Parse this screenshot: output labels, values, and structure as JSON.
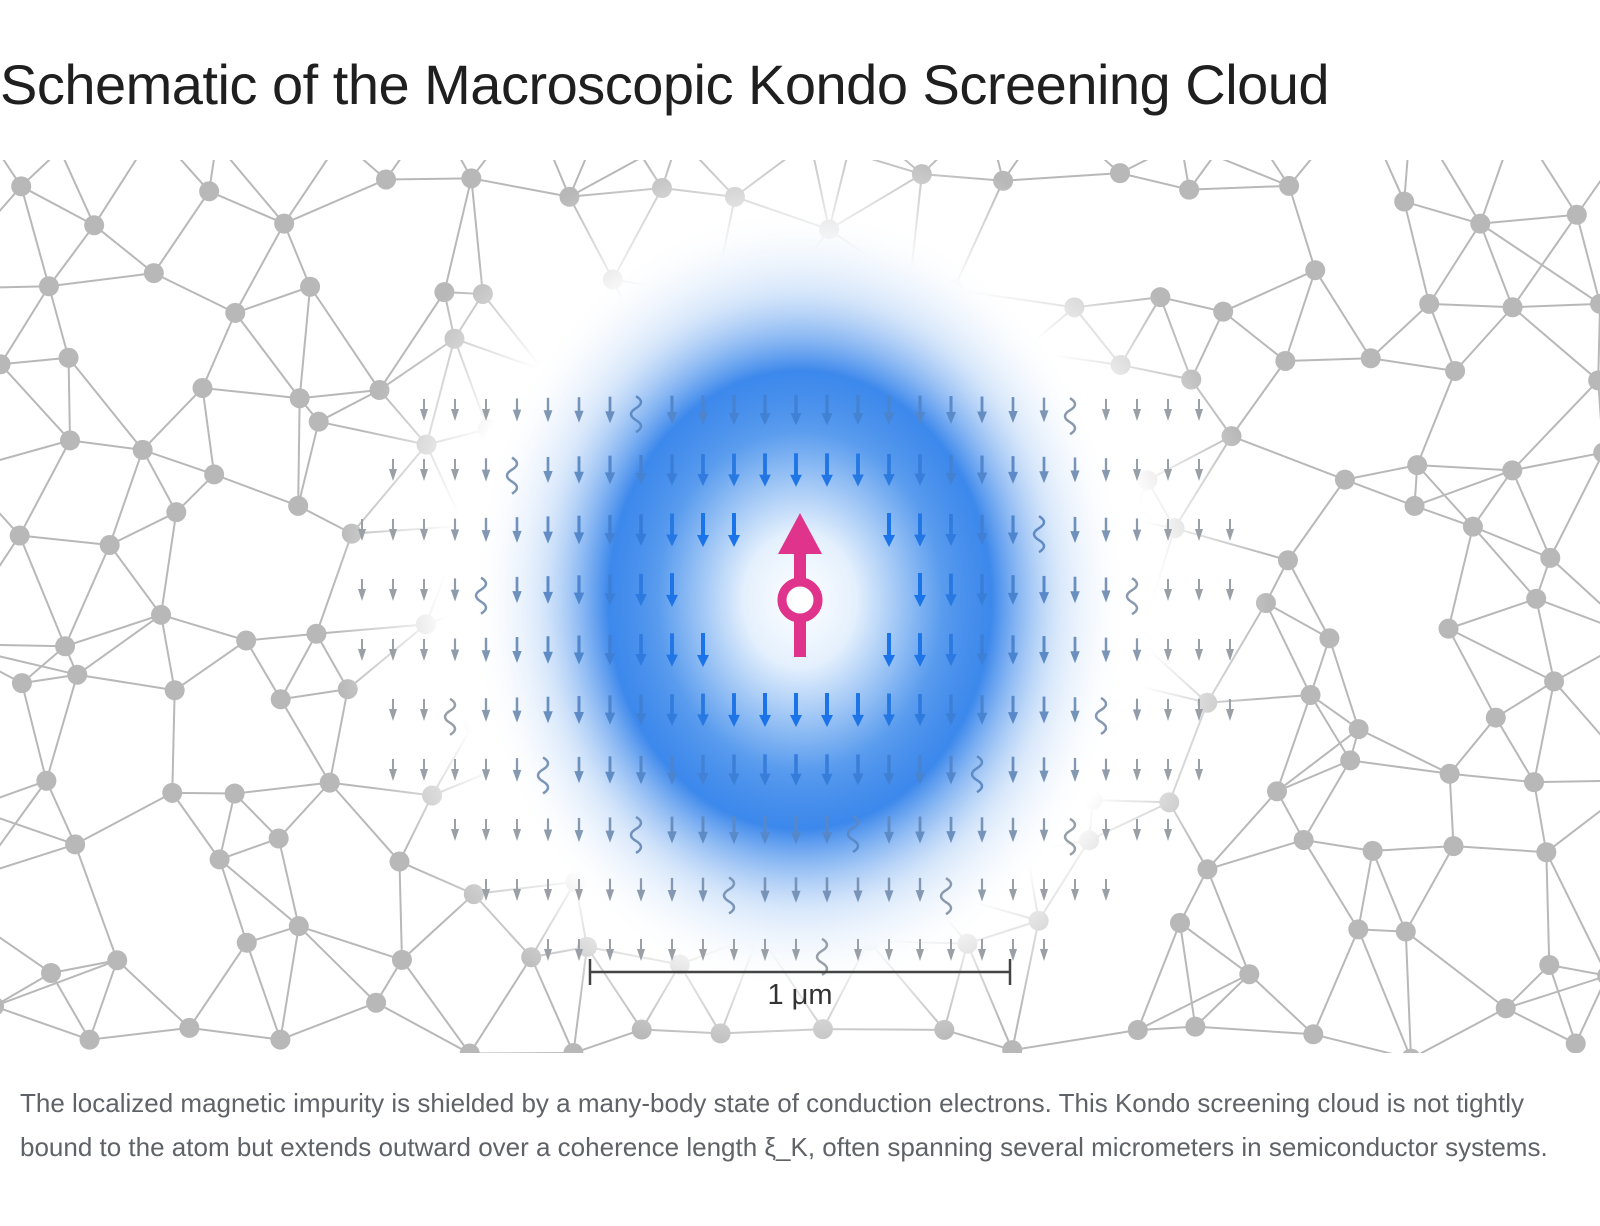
{
  "title": "Schematic of the Macroscopic Kondo Screening Cloud",
  "scale_bar": {
    "label": "1 μm"
  },
  "caption": "The localized magnetic impurity is shielded by a many-body state of conduction electrons. This Kondo screening cloud is not tightly bound to the atom but extends outward over a coherence length ξ_K, often spanning several micrometers in semiconductor systems.",
  "colors": {
    "impurity": "#e0338c",
    "cloud": "#1a73e8",
    "lattice": "#b8b8b8",
    "arrow_inner": "#1a73e8",
    "arrow_outer": "#9aa0a6"
  },
  "elements": {
    "impurity": {
      "icon": "spin-up-arrow-icon"
    },
    "screening_cloud": {
      "icon": "spin-down-arrow-icon"
    }
  }
}
